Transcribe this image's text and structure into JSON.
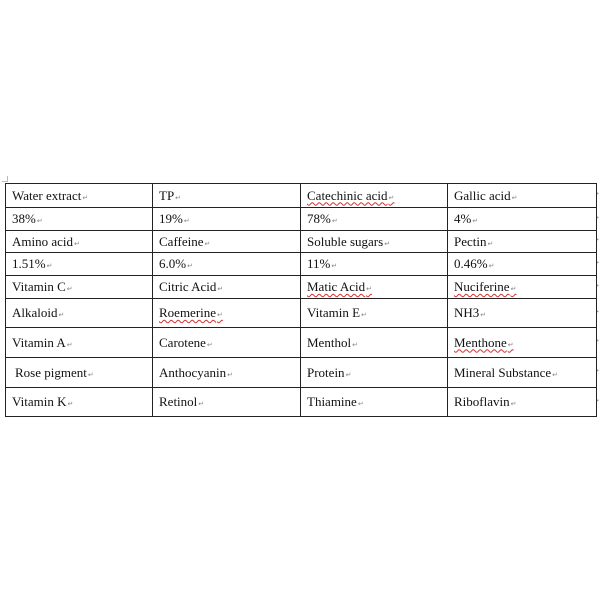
{
  "table": {
    "rows": [
      {
        "cells": [
          "Water extract",
          "TP",
          "Catechinic acid",
          "Gallic acid"
        ],
        "spell": [
          false,
          false,
          true,
          false
        ]
      },
      {
        "cells": [
          "38%",
          "19%",
          "78%",
          "4%"
        ],
        "spell": [
          false,
          false,
          false,
          false
        ]
      },
      {
        "cells": [
          "Amino acid",
          "Caffeine",
          "Soluble sugars",
          "Pectin"
        ],
        "spell": [
          false,
          false,
          false,
          false
        ]
      },
      {
        "cells": [
          "1.51%",
          "6.0%",
          "11%",
          "0.46%"
        ],
        "spell": [
          false,
          false,
          false,
          false
        ]
      },
      {
        "cells": [
          "Vitamin C",
          "Citric Acid",
          "Matic Acid",
          "Nuciferine"
        ],
        "spell": [
          false,
          false,
          true,
          true
        ]
      },
      {
        "cells": [
          "Alkaloid",
          "Roemerine",
          "Vitamin E",
          "NH3"
        ],
        "spell": [
          false,
          true,
          false,
          false
        ]
      },
      {
        "cells": [
          "Vitamin A",
          "Carotene",
          "Menthol",
          "Menthone"
        ],
        "spell": [
          false,
          false,
          false,
          true
        ]
      },
      {
        "cells": [
          " Rose pigment",
          "Anthocyanin",
          "Protein",
          "Mineral Substance"
        ],
        "spell": [
          false,
          false,
          false,
          false
        ]
      },
      {
        "cells": [
          "Vitamin K",
          "Retinol",
          "Thiamine",
          "Riboflavin"
        ],
        "spell": [
          false,
          false,
          false,
          false
        ]
      }
    ],
    "spellcheck_color": "#d03030"
  }
}
